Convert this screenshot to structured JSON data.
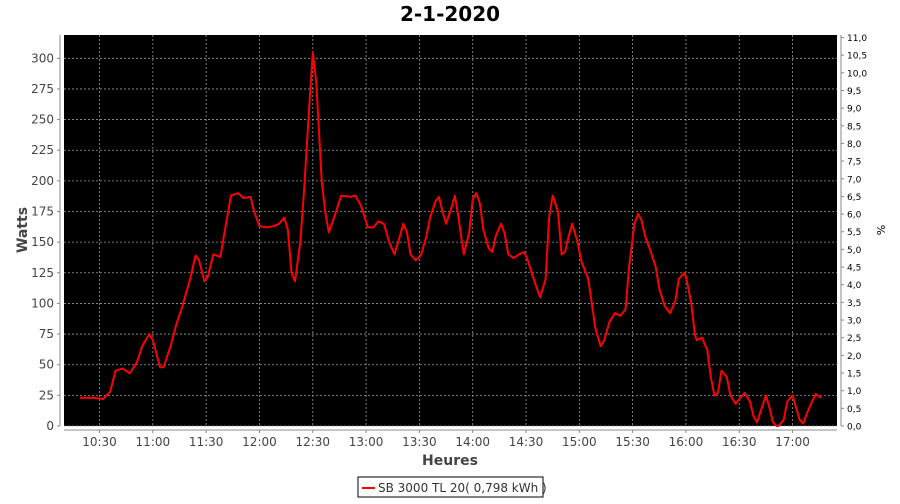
{
  "chart_data": {
    "type": "line",
    "title": "2-1-2020",
    "xlabel": "Heures",
    "ylabel": "Watts",
    "y2label": "%",
    "xlim": [
      "10:10",
      "17:25"
    ],
    "ylim": [
      0,
      319
    ],
    "y2lim": [
      0,
      11.07
    ],
    "grid": true,
    "background": "#000000",
    "legend_position": "bottom",
    "x_ticks": [
      "10:30",
      "11:00",
      "11:30",
      "12:00",
      "12:30",
      "13:00",
      "13:30",
      "14:00",
      "14:30",
      "15:00",
      "15:30",
      "16:00",
      "16:30",
      "17:00"
    ],
    "y_ticks": [
      0,
      25,
      50,
      75,
      100,
      125,
      150,
      175,
      200,
      225,
      250,
      275,
      300
    ],
    "y2_ticks": [
      "0,0",
      "0,5",
      "1,0",
      "1,5",
      "2,0",
      "2,5",
      "3,0",
      "3,5",
      "4,0",
      "4,5",
      "5,0",
      "5,5",
      "6,0",
      "6,5",
      "7,0",
      "7,5",
      "8,0",
      "8,5",
      "9,0",
      "9,5",
      "10,0",
      "10,5",
      "11,0"
    ],
    "series": [
      {
        "name": "SB 3000 TL 20( 0,798 kWh )",
        "color": "#ff0000",
        "x": [
          "10:19",
          "10:26",
          "10:32",
          "10:36",
          "10:39",
          "10:43",
          "10:47",
          "10:51",
          "10:54",
          "10:58",
          "11:00",
          "11:04",
          "11:06",
          "11:10",
          "11:13",
          "11:16",
          "11:21",
          "11:24",
          "11:26",
          "11:29",
          "11:31",
          "11:34",
          "11:38",
          "11:40",
          "11:44",
          "11:48",
          "11:51",
          "11:55",
          "11:57",
          "12:00",
          "12:04",
          "12:08",
          "12:11",
          "12:14",
          "12:16",
          "12:18",
          "12:20",
          "12:23",
          "12:25",
          "12:28",
          "12:30",
          "12:32",
          "12:35",
          "12:37",
          "12:39",
          "12:42",
          "12:46",
          "12:51",
          "12:54",
          "12:57",
          "13:01",
          "13:04",
          "13:07",
          "13:10",
          "13:13",
          "13:16",
          "13:19",
          "13:21",
          "13:23",
          "13:25",
          "13:28",
          "13:31",
          "13:34",
          "13:36",
          "13:39",
          "13:41",
          "13:43",
          "13:45",
          "13:48",
          "13:50",
          "13:52",
          "13:55",
          "13:58",
          "14:00",
          "14:02",
          "14:04",
          "14:06",
          "14:09",
          "14:11",
          "14:13",
          "14:16",
          "14:18",
          "14:20",
          "14:23",
          "14:26",
          "14:29",
          "14:31",
          "14:35",
          "14:38",
          "14:41",
          "14:43",
          "14:45",
          "14:48",
          "14:50",
          "14:52",
          "14:54",
          "14:56",
          "14:59",
          "15:01",
          "15:05",
          "15:07",
          "15:09",
          "15:12",
          "15:14",
          "15:17",
          "15:20",
          "15:23",
          "15:26",
          "15:28",
          "15:31",
          "15:33",
          "15:35",
          "15:37",
          "15:40",
          "15:43",
          "15:45",
          "15:48",
          "15:51",
          "15:54",
          "15:56",
          "15:59",
          "16:00",
          "16:03",
          "16:05",
          "16:06",
          "16:09",
          "16:12",
          "16:14",
          "16:16",
          "16:18",
          "16:20",
          "16:23",
          "16:25",
          "16:28",
          "16:30",
          "16:33",
          "16:36",
          "16:38",
          "16:40",
          "16:42",
          "16:45",
          "16:47",
          "16:49",
          "16:51",
          "16:52",
          "16:55",
          "16:57",
          "17:00",
          "17:02",
          "17:04",
          "17:06",
          "17:08",
          "17:11",
          "17:13",
          "17:16"
        ],
        "y": [
          23,
          23,
          22,
          28,
          45,
          47,
          43,
          52,
          65,
          75,
          70,
          48,
          48,
          65,
          82,
          95,
          120,
          139,
          135,
          118,
          122,
          140,
          138,
          155,
          188,
          190,
          186,
          187,
          175,
          163,
          162,
          163,
          165,
          170,
          160,
          125,
          118,
          150,
          190,
          260,
          305,
          280,
          200,
          175,
          158,
          170,
          188,
          187,
          188,
          180,
          162,
          162,
          167,
          165,
          150,
          140,
          155,
          165,
          158,
          140,
          135,
          140,
          155,
          170,
          183,
          187,
          175,
          165,
          178,
          188,
          170,
          140,
          158,
          185,
          190,
          182,
          160,
          145,
          142,
          155,
          165,
          157,
          140,
          137,
          140,
          142,
          135,
          117,
          105,
          120,
          170,
          188,
          175,
          140,
          142,
          155,
          165,
          150,
          135,
          120,
          100,
          80,
          65,
          70,
          85,
          92,
          90,
          95,
          130,
          165,
          173,
          168,
          155,
          143,
          130,
          112,
          98,
          92,
          102,
          120,
          125,
          122,
          100,
          75,
          70,
          72,
          62,
          40,
          25,
          27,
          45,
          40,
          25,
          18,
          22,
          27,
          20,
          8,
          3,
          12,
          25,
          15,
          3,
          0,
          0,
          5,
          20,
          25,
          15,
          5,
          2,
          10,
          20,
          26,
          23
        ]
      }
    ]
  }
}
